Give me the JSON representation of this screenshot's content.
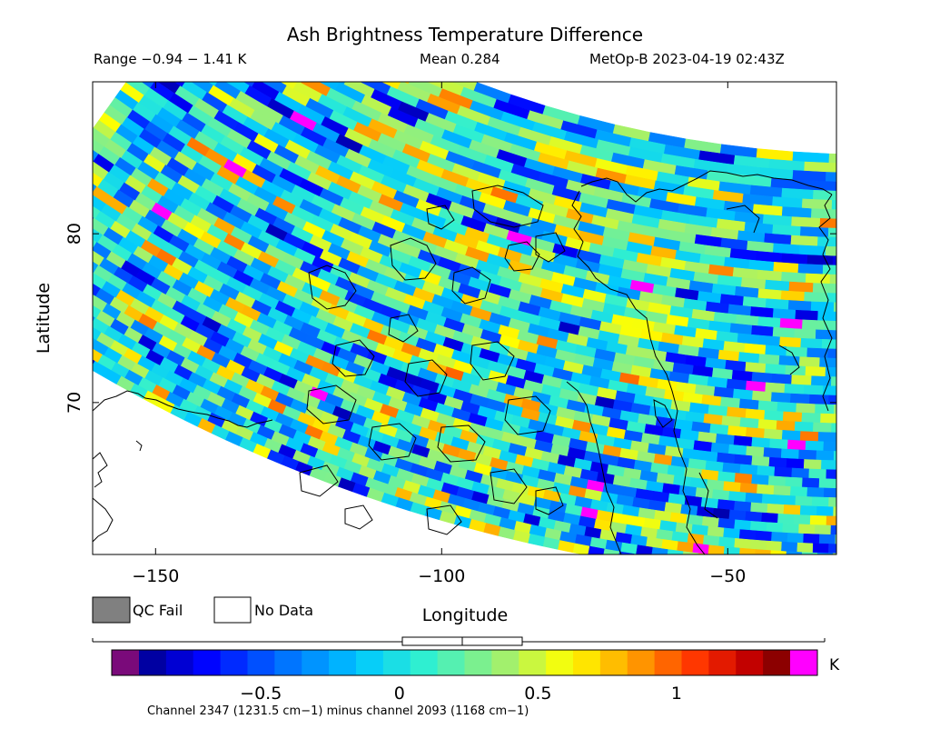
{
  "chart_data": {
    "type": "heatmap",
    "title": "Ash Brightness Temperature Difference",
    "subtitle": {
      "range": "Range −0.94 − 1.41 K",
      "mean": "Mean 0.284",
      "satellite_time": "MetOp-B 2023-04-19 02:43Z"
    },
    "xlabel": "Longitude",
    "ylabel": "Latitude",
    "xlim": [
      -161,
      -31
    ],
    "ylim": [
      61,
      89
    ],
    "x_ticks": [
      -150,
      -100,
      -50
    ],
    "y_ticks": [
      70,
      80
    ],
    "grid": false,
    "colorbar": {
      "range": [
        -0.94,
        1.41
      ],
      "ticks": [
        -0.5,
        0,
        0.5,
        1
      ],
      "tick_labels": [
        "−0.5",
        "0",
        "0.5",
        "1"
      ],
      "unit": "K",
      "colors": [
        "#7a0a7a",
        "#00008a",
        "#0000ff",
        "#0070ff",
        "#00c8ff",
        "#30f0d0",
        "#a0f070",
        "#ffff00",
        "#ffa000",
        "#ff3000",
        "#c00000",
        "#700000",
        "#ff00ff"
      ],
      "label": "Channel 2347 (1231.5 cm−1) minus channel 2093 (1168 cm−1)"
    },
    "legend": [
      {
        "label": "QC Fail",
        "color": "#808080"
      },
      {
        "label": "No Data",
        "color": "#ffffff"
      }
    ]
  }
}
